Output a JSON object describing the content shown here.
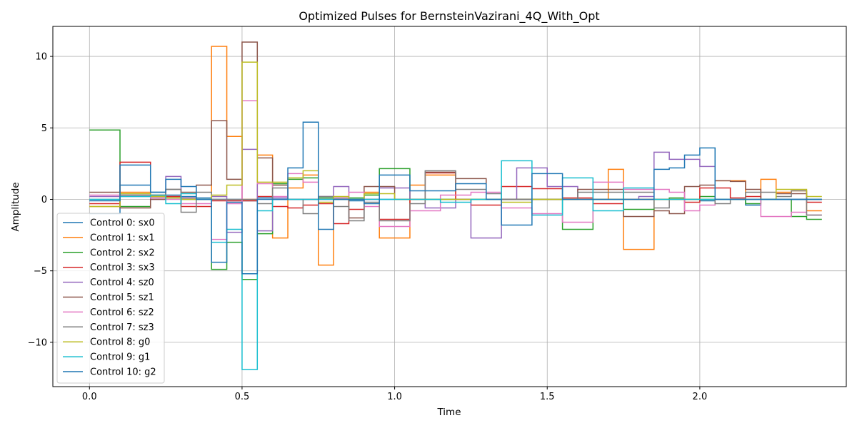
{
  "chart_data": {
    "type": "line",
    "step": "post",
    "title": "Optimized Pulses for BernsteinVazirani_4Q_With_Opt",
    "xlabel": "Time",
    "ylabel": "Amplitude",
    "xlim": [
      -0.12,
      2.48
    ],
    "ylim": [
      -13.1,
      12.1
    ],
    "xticks": [
      0.0,
      0.5,
      1.0,
      1.5,
      2.0
    ],
    "xtick_labels": [
      "0.0",
      "0.5",
      "1.0",
      "1.5",
      "2.0"
    ],
    "yticks": [
      -10,
      -5,
      0,
      5,
      10
    ],
    "ytick_labels": [
      "−10",
      "−5",
      "0",
      "5",
      "10"
    ],
    "grid": true,
    "legend_position": "lower-left",
    "time_step": 0.05,
    "x": [
      0.0,
      0.05,
      0.1,
      0.15,
      0.2,
      0.25,
      0.3,
      0.35,
      0.4,
      0.45,
      0.5,
      0.55,
      0.6,
      0.65,
      0.7,
      0.75,
      0.8,
      0.85,
      0.9,
      0.95,
      1.0,
      1.05,
      1.1,
      1.15,
      1.2,
      1.25,
      1.3,
      1.35,
      1.4,
      1.45,
      1.5,
      1.55,
      1.6,
      1.65,
      1.7,
      1.75,
      1.8,
      1.85,
      1.9,
      1.95,
      2.0,
      2.05,
      2.1,
      2.15,
      2.2,
      2.25,
      2.3,
      2.35
    ],
    "series": [
      {
        "name": "Control 0: sx0",
        "color": "#1f77b4",
        "values": [
          -1.0,
          -1.0,
          1.0,
          1.0,
          0.5,
          0.3,
          0.2,
          0.1,
          0.0,
          0.0,
          -0.1,
          0.1,
          0.0,
          0.0,
          0.0,
          0.0,
          0.0,
          -0.1,
          0.0,
          0.0,
          0.0,
          0.0,
          0.0,
          0.0,
          0.0,
          0.0,
          0.0,
          0.0,
          0.0,
          0.0,
          0.0,
          0.0,
          0.0,
          0.0,
          0.0,
          0.0,
          0.0,
          0.0,
          0.0,
          0.0,
          -0.1,
          0.0,
          0.0,
          -0.4,
          0.0,
          0.0,
          0.0,
          0.0
        ]
      },
      {
        "name": "Control 1: sx1",
        "color": "#ff7f0e",
        "values": [
          -0.5,
          -0.5,
          0.5,
          0.5,
          0.3,
          0.2,
          0.1,
          0.0,
          10.7,
          4.4,
          0.0,
          3.1,
          -2.7,
          0.8,
          1.7,
          -4.6,
          0.0,
          0.0,
          0.5,
          -2.7,
          -2.7,
          1.0,
          1.7,
          1.7,
          0.0,
          0.0,
          0.0,
          0.0,
          0.0,
          0.0,
          0.0,
          0.0,
          0.0,
          0.0,
          2.1,
          -3.5,
          -3.5,
          0.0,
          0.0,
          0.0,
          0.0,
          1.3,
          1.3,
          0.0,
          1.4,
          0.5,
          0.6,
          -0.8
        ]
      },
      {
        "name": "Control 2: sx2",
        "color": "#2ca02c",
        "values": [
          4.85,
          4.85,
          -0.5,
          -0.5,
          0.2,
          0.1,
          0.0,
          0.0,
          -4.9,
          -3.0,
          -5.6,
          -2.4,
          1.1,
          1.4,
          1.5,
          0.1,
          0.1,
          0.1,
          0.3,
          2.15,
          2.15,
          0.0,
          0.0,
          0.0,
          0.0,
          0.0,
          0.0,
          0.0,
          0.0,
          0.0,
          0.0,
          -2.1,
          -2.1,
          0.0,
          0.0,
          -0.7,
          -0.7,
          0.0,
          0.1,
          0.0,
          0.2,
          0.0,
          0.0,
          -0.3,
          0.0,
          0.0,
          -1.2,
          -1.4
        ]
      },
      {
        "name": "Control 3: sx3",
        "color": "#d62728",
        "values": [
          -0.3,
          -0.3,
          2.6,
          2.6,
          0.3,
          0.2,
          -0.5,
          -0.5,
          -0.1,
          -0.1,
          -0.1,
          0.2,
          -0.5,
          -0.6,
          -0.4,
          -0.3,
          -1.7,
          -0.7,
          0.0,
          -1.4,
          -1.4,
          0.0,
          1.85,
          1.85,
          0.0,
          -0.4,
          -0.4,
          0.9,
          0.9,
          0.75,
          0.75,
          0.1,
          0.1,
          -0.3,
          -0.3,
          0.0,
          0.0,
          0.0,
          0.0,
          -0.2,
          0.8,
          0.8,
          0.1,
          0.2,
          0.0,
          0.0,
          0.0,
          -0.2
        ]
      },
      {
        "name": "Control 4: sz0",
        "color": "#9467bd",
        "values": [
          0.2,
          0.2,
          0.3,
          0.3,
          0.0,
          1.6,
          0.1,
          0.0,
          0.2,
          -2.3,
          3.5,
          -2.2,
          0.1,
          0.0,
          0.0,
          0.2,
          0.9,
          0.0,
          0.0,
          0.8,
          0.8,
          0.0,
          -0.6,
          -0.6,
          0.0,
          -2.7,
          -2.7,
          0.0,
          2.2,
          2.2,
          0.9,
          0.9,
          0.0,
          0.0,
          0.0,
          0.0,
          0.2,
          3.3,
          2.8,
          2.8,
          2.3,
          0.0,
          0.0,
          0.0,
          0.0,
          0.0,
          0.0,
          0.0
        ]
      },
      {
        "name": "Control 5: sz1",
        "color": "#8c564b",
        "values": [
          0.5,
          0.5,
          -0.6,
          -0.6,
          0.0,
          0.7,
          0.5,
          1.0,
          5.5,
          1.4,
          11.0,
          2.9,
          1.0,
          0.0,
          0.0,
          0.0,
          0.0,
          -1.3,
          0.9,
          0.9,
          0.0,
          0.0,
          1.9,
          1.9,
          1.45,
          1.45,
          0.0,
          0.0,
          0.0,
          0.0,
          0.0,
          0.0,
          0.7,
          0.7,
          0.7,
          -1.2,
          -1.2,
          -0.8,
          -1.0,
          0.9,
          1.0,
          1.3,
          1.25,
          0.7,
          0.0,
          0.4,
          0.4,
          0.0
        ]
      },
      {
        "name": "Control 6: sz2",
        "color": "#e377c2",
        "values": [
          0.3,
          0.3,
          0.2,
          0.2,
          0.1,
          0.0,
          -0.3,
          -0.3,
          -2.8,
          -0.3,
          6.9,
          1.1,
          0.2,
          1.8,
          1.2,
          0.0,
          0.1,
          0.5,
          -0.5,
          -1.9,
          -1.9,
          -0.8,
          -0.8,
          0.3,
          0.3,
          0.5,
          0.5,
          -0.6,
          -0.6,
          -1.0,
          -1.0,
          -1.6,
          -1.6,
          1.2,
          1.2,
          0.7,
          0.7,
          0.7,
          0.5,
          -0.8,
          -0.4,
          0.0,
          0.0,
          0.0,
          -1.2,
          -1.2,
          -0.9,
          -1.1
        ]
      },
      {
        "name": "Control 7: sz3",
        "color": "#7f7f7f",
        "values": [
          0.0,
          0.0,
          0.3,
          0.3,
          0.2,
          0.7,
          -0.9,
          0.5,
          0.0,
          0.0,
          0.0,
          -0.3,
          0.8,
          0.0,
          -1.0,
          0.2,
          -0.5,
          -1.5,
          -0.2,
          -1.5,
          -1.5,
          -0.3,
          2.0,
          2.0,
          0.7,
          0.7,
          0.4,
          0.0,
          0.0,
          0.0,
          0.0,
          0.0,
          0.5,
          0.5,
          0.5,
          0.5,
          0.5,
          -0.6,
          0.0,
          0.0,
          0.0,
          -0.3,
          0.0,
          0.5,
          0.5,
          0.2,
          0.6,
          -1.1
        ]
      },
      {
        "name": "Control 8: g0",
        "color": "#bcbd22",
        "values": [
          -0.5,
          -0.5,
          0.4,
          0.4,
          0.2,
          0.1,
          0.0,
          0.0,
          0.3,
          1.0,
          9.6,
          1.2,
          1.2,
          1.5,
          2.0,
          -0.2,
          0.2,
          0.0,
          0.4,
          0.4,
          0.0,
          0.0,
          0.0,
          0.0,
          0.0,
          0.0,
          0.0,
          -0.2,
          -0.2,
          0.0,
          0.0,
          0.0,
          0.0,
          0.0,
          0.0,
          0.0,
          0.0,
          0.0,
          0.0,
          0.0,
          0.0,
          0.0,
          0.0,
          0.0,
          0.0,
          0.7,
          0.7,
          0.2
        ]
      },
      {
        "name": "Control 9: g1",
        "color": "#17becf",
        "values": [
          0.0,
          0.0,
          0.2,
          0.2,
          0.3,
          -0.3,
          0.4,
          0.0,
          -3.0,
          -2.1,
          -11.9,
          -0.8,
          0.0,
          0.0,
          0.0,
          0.0,
          0.0,
          0.0,
          0.0,
          0.0,
          0.0,
          0.0,
          0.0,
          -0.2,
          -0.2,
          0.0,
          0.0,
          2.7,
          2.7,
          -1.1,
          -1.1,
          1.5,
          1.5,
          -0.8,
          -0.8,
          0.8,
          0.8,
          0.0,
          0.0,
          0.0,
          0.0,
          0.0,
          0.0,
          0.0,
          0.0,
          0.0,
          0.0,
          0.0
        ]
      },
      {
        "name": "Control 10: g2",
        "color": "#1f77b4",
        "values": [
          -0.1,
          -0.1,
          2.4,
          2.4,
          0.5,
          1.4,
          0.9,
          0.0,
          -4.4,
          -0.2,
          -5.2,
          0.0,
          0.0,
          2.2,
          5.4,
          -2.1,
          0.0,
          0.0,
          -0.3,
          1.7,
          1.7,
          0.6,
          0.6,
          0.6,
          1.1,
          1.1,
          0.0,
          -1.8,
          -1.8,
          1.8,
          1.8,
          0.0,
          0.0,
          0.0,
          0.0,
          0.0,
          0.0,
          2.1,
          2.2,
          3.1,
          3.6,
          0.0,
          0.0,
          0.0,
          0.0,
          0.0,
          0.0,
          0.0
        ]
      }
    ]
  }
}
